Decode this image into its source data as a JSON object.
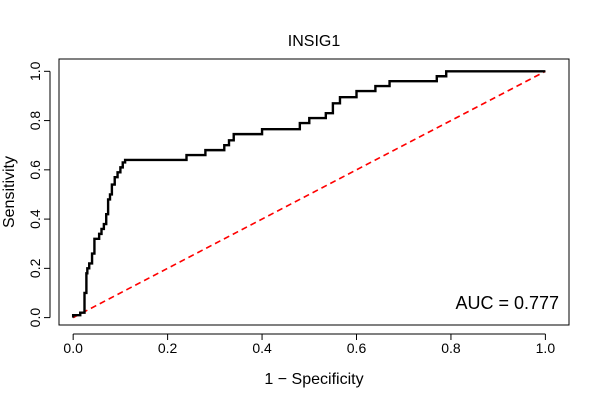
{
  "chart_data": {
    "type": "line",
    "title": "INSIG1",
    "xlabel": "1 − Specificity",
    "ylabel": "Sensitivity",
    "xlim": [
      -0.03,
      1.05
    ],
    "ylim": [
      -0.03,
      1.05
    ],
    "xticks": [
      0.0,
      0.2,
      0.4,
      0.6,
      0.8,
      1.0
    ],
    "yticks": [
      0.0,
      0.2,
      0.4,
      0.6,
      0.8,
      1.0
    ],
    "xtick_labels": [
      "0.0",
      "0.2",
      "0.4",
      "0.6",
      "0.8",
      "1.0"
    ],
    "ytick_labels": [
      "0.0",
      "0.2",
      "0.4",
      "0.6",
      "0.8",
      "1.0"
    ],
    "annotation": "AUC = 0.777",
    "legend": "none",
    "grid": false,
    "series": [
      {
        "name": "ROC",
        "color": "#000000",
        "style": "step",
        "x": [
          0.0,
          0.0,
          0.015,
          0.015,
          0.024,
          0.024,
          0.028,
          0.028,
          0.03,
          0.03,
          0.034,
          0.034,
          0.04,
          0.04,
          0.045,
          0.045,
          0.055,
          0.055,
          0.06,
          0.06,
          0.065,
          0.065,
          0.07,
          0.07,
          0.074,
          0.074,
          0.078,
          0.078,
          0.082,
          0.082,
          0.088,
          0.088,
          0.094,
          0.094,
          0.1,
          0.1,
          0.105,
          0.105,
          0.11,
          0.11,
          0.115,
          0.115,
          0.24,
          0.24,
          0.28,
          0.28,
          0.32,
          0.32,
          0.33,
          0.33,
          0.34,
          0.34,
          0.4,
          0.4,
          0.48,
          0.48,
          0.5,
          0.5,
          0.535,
          0.535,
          0.55,
          0.55,
          0.565,
          0.565,
          0.6,
          0.6,
          0.64,
          0.64,
          0.67,
          0.67,
          0.77,
          0.77,
          0.79,
          0.79,
          1.0
        ],
        "y": [
          0.0,
          0.01,
          0.01,
          0.02,
          0.02,
          0.1,
          0.1,
          0.18,
          0.18,
          0.2,
          0.2,
          0.22,
          0.22,
          0.26,
          0.26,
          0.32,
          0.32,
          0.34,
          0.34,
          0.36,
          0.36,
          0.38,
          0.38,
          0.42,
          0.42,
          0.48,
          0.48,
          0.5,
          0.5,
          0.54,
          0.54,
          0.57,
          0.57,
          0.59,
          0.59,
          0.61,
          0.61,
          0.63,
          0.63,
          0.64,
          0.64,
          0.64,
          0.64,
          0.66,
          0.66,
          0.68,
          0.68,
          0.7,
          0.7,
          0.72,
          0.72,
          0.745,
          0.745,
          0.765,
          0.765,
          0.79,
          0.79,
          0.81,
          0.81,
          0.83,
          0.83,
          0.87,
          0.87,
          0.895,
          0.895,
          0.92,
          0.92,
          0.94,
          0.94,
          0.96,
          0.96,
          0.98,
          0.98,
          1.0,
          1.0
        ]
      },
      {
        "name": "Reference diagonal",
        "color": "#ff0000",
        "style": "dashed",
        "x": [
          0.0,
          1.0
        ],
        "y": [
          0.0,
          1.0
        ]
      }
    ]
  }
}
